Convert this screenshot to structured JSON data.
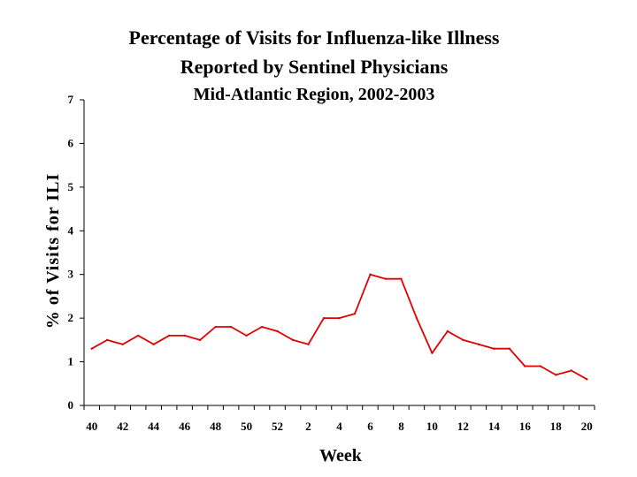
{
  "chart_data": {
    "type": "line",
    "title": "Percentage of Visits for Influenza-like Illness",
    "subtitle": "Reported by Sentinel Physicians",
    "subtitle2": "Mid-Atlantic Region, 2002-2003",
    "xlabel": "Week",
    "ylabel": "% of Visits for ILI",
    "ylim": [
      0,
      7
    ],
    "yticks": [
      "0",
      "1",
      "2",
      "3",
      "4",
      "5",
      "6",
      "7"
    ],
    "x": [
      40,
      41,
      42,
      43,
      44,
      45,
      46,
      47,
      48,
      49,
      50,
      51,
      52,
      1,
      2,
      3,
      4,
      5,
      6,
      7,
      8,
      9,
      10,
      11,
      12,
      13,
      14,
      15,
      16,
      17,
      18,
      19,
      20
    ],
    "xtick_labels": [
      "40",
      "42",
      "44",
      "46",
      "48",
      "50",
      "52",
      "2",
      "4",
      "6",
      "8",
      "10",
      "12",
      "14",
      "16",
      "18",
      "20"
    ],
    "series": [
      {
        "name": "% of Visits for ILI",
        "color": "#e00000",
        "values": [
          1.3,
          1.5,
          1.4,
          1.6,
          1.4,
          1.6,
          1.6,
          1.5,
          1.8,
          1.8,
          1.6,
          1.8,
          1.7,
          1.5,
          1.4,
          2.0,
          2.0,
          2.1,
          3.0,
          2.9,
          2.9,
          2.0,
          1.2,
          1.7,
          1.5,
          1.4,
          1.3,
          1.3,
          0.9,
          0.9,
          0.7,
          0.8,
          0.6
        ]
      }
    ]
  }
}
